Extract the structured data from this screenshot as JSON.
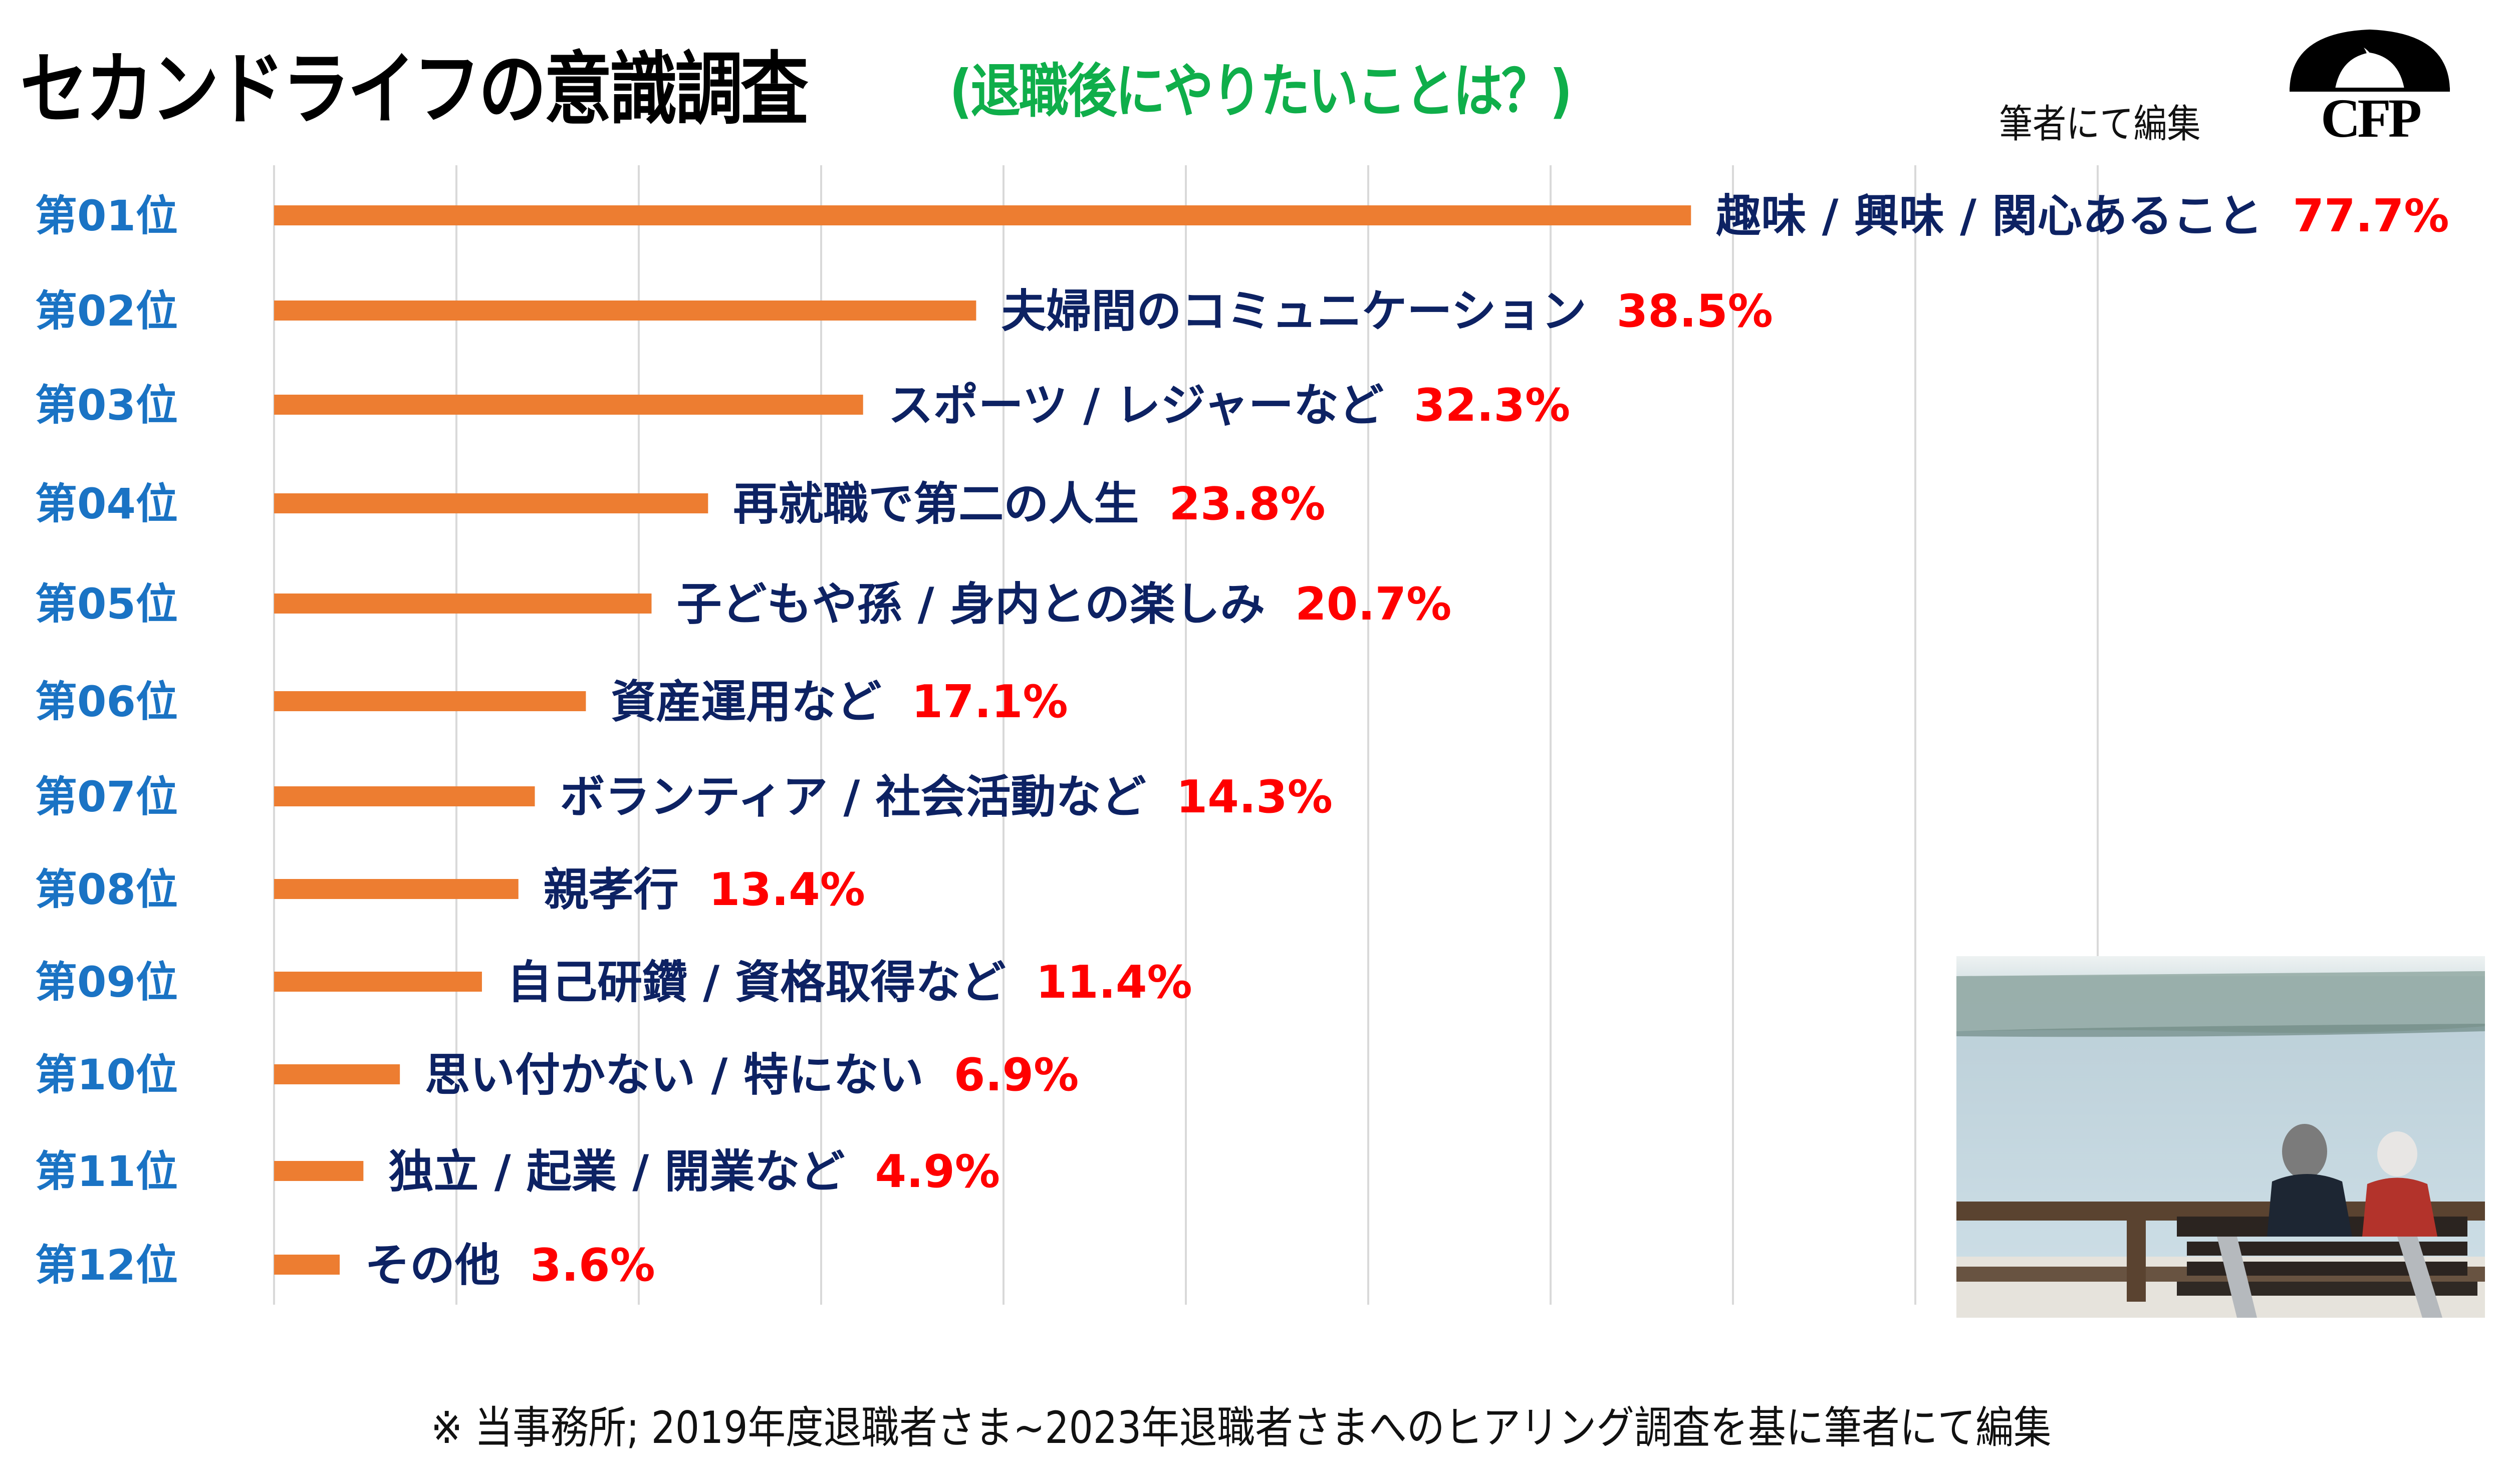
{
  "header": {
    "title": "セカンドライフの意識調査",
    "subtitle": "(退職後にやりたいことは？)",
    "credit": "筆者にて編集",
    "logo_text": "CFP",
    "logo_icon": "cfp-flame-arch-logo"
  },
  "photo": {
    "description": "elderly couple sitting on a bench facing the sea",
    "icon": "photo-couple-bench"
  },
  "footnote": "※ 当事務所; 2019年度退職者さま~2023年退職者さまへのヒアリング調査を基に筆者にて編集",
  "colors": {
    "bar": "#ed7d31",
    "rank_label": "#1a73c4",
    "category_label": "#0d2263",
    "value_label": "#ff0000",
    "gridline": "#d9d9d9",
    "subtitle": "#0fae4a"
  },
  "chart_data": {
    "type": "bar",
    "orientation": "horizontal",
    "title": "セカンドライフの意識調査",
    "subtitle": "(退職後にやりたいことは？)",
    "xlabel": "",
    "ylabel": "",
    "xlim": [
      0,
      100
    ],
    "grid": true,
    "grid_step": 10,
    "legend": "none",
    "ranks": [
      "第01位",
      "第02位",
      "第03位",
      "第04位",
      "第05位",
      "第06位",
      "第07位",
      "第08位",
      "第09位",
      "第10位",
      "第11位",
      "第12位"
    ],
    "categories": [
      "趣味 / 興味 / 関心あること",
      "夫婦間のコミュニケーション",
      "スポーツ / レジャーなど",
      "再就職で第二の人生",
      "子どもや孫 / 身内との楽しみ",
      "資産運用など",
      "ボランティア / 社会活動など",
      "親孝行",
      "自己研鑽 / 資格取得など",
      "思い付かない / 特にない",
      "独立 / 起業 / 開業など",
      "その他"
    ],
    "values": [
      77.7,
      38.5,
      32.3,
      23.8,
      20.7,
      17.1,
      14.3,
      13.4,
      11.4,
      6.9,
      4.9,
      3.6
    ],
    "value_labels": [
      "77.7%",
      "38.5%",
      "32.3%",
      "23.8%",
      "20.7%",
      "17.1%",
      "14.3%",
      "13.4%",
      "11.4%",
      "6.9%",
      "4.9%",
      "3.6%"
    ],
    "unit": "%"
  }
}
